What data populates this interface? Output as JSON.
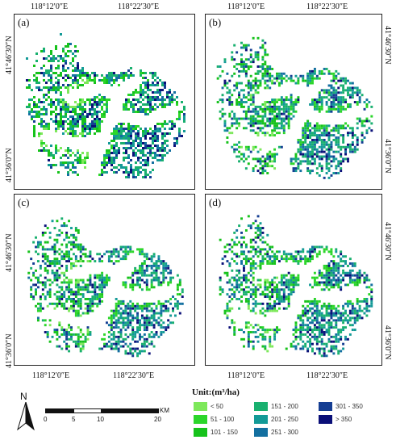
{
  "coords": {
    "top_left": "118°12′0″E",
    "top_right": "118°22′30″E",
    "bottom_left": "118°12′0″E",
    "bottom_right": "118°22′30″E",
    "lat_north": "41°46′30″N",
    "lat_south": "41°36′0″N"
  },
  "panels": [
    {
      "label": "(a)"
    },
    {
      "label": "(b)"
    },
    {
      "label": "(c)"
    },
    {
      "label": "(d)"
    }
  ],
  "north_arrow": {
    "label": "N"
  },
  "scalebar": {
    "ticks": [
      "0",
      "5",
      "10",
      "20"
    ],
    "unit": "KM"
  },
  "legend": {
    "title": "Unit:(m³/ha)",
    "classes": [
      {
        "label": "< 50",
        "color": "#7de85a"
      },
      {
        "label": "51 - 100",
        "color": "#2bd62a"
      },
      {
        "label": "101 - 150",
        "color": "#16c21b"
      },
      {
        "label": "151 - 200",
        "color": "#19b06f"
      },
      {
        "label": "201 - 250",
        "color": "#139a97"
      },
      {
        "label": "251 - 300",
        "color": "#136fa0"
      },
      {
        "label": "301 - 350",
        "color": "#153e93"
      },
      {
        "label": "> 350",
        "color": "#0a0f78"
      }
    ]
  }
}
